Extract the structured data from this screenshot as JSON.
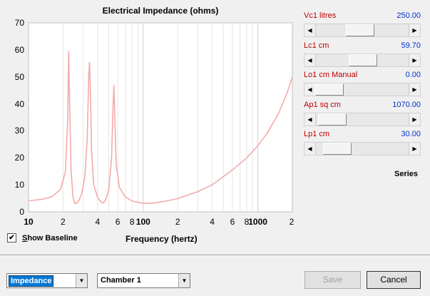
{
  "chart_data": {
    "type": "line",
    "title": "Electrical Impedance (ohms)",
    "xlabel": "Frequency (hertz)",
    "ylabel": "",
    "x_scale": "log",
    "xlim": [
      10,
      2000
    ],
    "ylim": [
      0,
      70
    ],
    "y_ticks": [
      "70",
      "60",
      "50",
      "40",
      "30",
      "20",
      "10",
      "0"
    ],
    "x_ticks": [
      "10",
      "2",
      "4",
      "6",
      "8",
      "100",
      "2",
      "4",
      "6",
      "8",
      "1000",
      "2"
    ],
    "grid": true,
    "color": "#f4aaaa",
    "series": [
      {
        "values": [
          [
            10,
            4.1
          ],
          [
            13,
            4.6
          ],
          [
            16,
            5.6
          ],
          [
            19,
            8.3
          ],
          [
            21,
            15
          ],
          [
            22,
            35
          ],
          [
            22.4,
            59.5
          ],
          [
            22.8,
            40
          ],
          [
            23.5,
            15
          ],
          [
            24.5,
            5
          ],
          [
            25.5,
            3.0
          ],
          [
            27,
            3.6
          ],
          [
            29,
            6.5
          ],
          [
            31,
            13
          ],
          [
            32.5,
            27
          ],
          [
            33.5,
            50
          ],
          [
            34,
            55.5
          ],
          [
            34.6,
            45
          ],
          [
            35.5,
            22
          ],
          [
            37,
            10
          ],
          [
            40,
            5.3
          ],
          [
            43,
            3.6
          ],
          [
            45,
            3.3
          ],
          [
            47,
            4.5
          ],
          [
            50,
            8
          ],
          [
            53,
            20
          ],
          [
            54.5,
            38
          ],
          [
            55.5,
            47
          ],
          [
            56.5,
            36
          ],
          [
            58,
            18
          ],
          [
            62,
            9
          ],
          [
            70,
            5.5
          ],
          [
            80,
            4
          ],
          [
            100,
            3.2
          ],
          [
            120,
            3.2
          ],
          [
            150,
            3.8
          ],
          [
            200,
            4.9
          ],
          [
            300,
            7.5
          ],
          [
            400,
            10
          ],
          [
            600,
            15.5
          ],
          [
            800,
            20
          ],
          [
            1000,
            24.5
          ],
          [
            1200,
            29
          ],
          [
            1500,
            36
          ],
          [
            1800,
            44
          ],
          [
            2000,
            50
          ]
        ]
      }
    ]
  },
  "baseline": {
    "label": "Show Baseline",
    "checked": "✔"
  },
  "params": [
    {
      "name": "Vc1  litres",
      "value": "250.00",
      "pos": 0.46
    },
    {
      "name": "Lc1  cm",
      "value": "59.70",
      "pos": 0.5
    },
    {
      "name": "Lo1  cm  Manual",
      "value": "0.00",
      "pos": 0.0
    },
    {
      "name": "Ap1  sq cm",
      "value": "1070.00",
      "pos": 0.04
    },
    {
      "name": "Lp1  cm",
      "value": "30.00",
      "pos": 0.12
    }
  ],
  "series_label": "Series",
  "mode_select": {
    "value": "Impedance"
  },
  "chamber_select": {
    "value": "Chamber 1"
  },
  "buttons": {
    "save": "Save",
    "cancel": "Cancel"
  },
  "icons": {
    "left": "◀",
    "right": "▶",
    "down": "▼"
  }
}
